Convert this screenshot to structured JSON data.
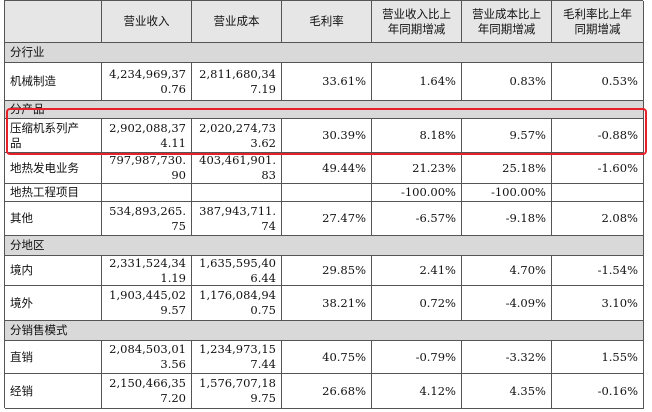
{
  "table": {
    "header": [
      [],
      [
        "营业收入"
      ],
      [
        "营业成本"
      ],
      [
        "毛利率"
      ],
      [
        "营业收入比上",
        "年同期增减"
      ],
      [
        "营业成本比上",
        "年同期增减"
      ],
      [
        "毛利率比上年",
        "同期增减"
      ]
    ],
    "rows": [
      {
        "section": "分行业"
      },
      {
        "cells": [
          [
            "机械制造"
          ],
          [
            "4,234,969,37",
            "0.76"
          ],
          [
            "2,811,680,34",
            "7.19"
          ],
          [
            "33.61%"
          ],
          [
            "1.64%"
          ],
          [
            "0.83%"
          ],
          [
            "0.53%"
          ]
        ]
      },
      {
        "section": "分产品"
      },
      {
        "cells": [
          [
            "压缩机系列产",
            "品"
          ],
          [
            "2,902,088,37",
            "4.11"
          ],
          [
            "2,020,274,73",
            "3.62"
          ],
          [
            "30.39%"
          ],
          [
            "8.18%"
          ],
          [
            "9.57%"
          ],
          [
            "-0.88%"
          ]
        ]
      },
      {
        "cells": [
          [
            "地热发电业务"
          ],
          [
            "797,987,730.",
            "90"
          ],
          [
            "403,461,901.",
            "83"
          ],
          [
            "49.44%"
          ],
          [
            "21.23%"
          ],
          [
            "25.18%"
          ],
          [
            "-1.60%"
          ]
        ]
      },
      {
        "cells": [
          [
            "地热工程项目"
          ],
          [],
          [],
          [],
          [
            "-100.00%"
          ],
          [
            "-100.00%"
          ],
          []
        ]
      },
      {
        "cells": [
          [
            "其他"
          ],
          [
            "534,893,265.",
            "75"
          ],
          [
            "387,943,711.",
            "74"
          ],
          [
            "27.47%"
          ],
          [
            "-6.57%"
          ],
          [
            "-9.18%"
          ],
          [
            "2.08%"
          ]
        ]
      },
      {
        "section": "分地区"
      },
      {
        "cells": [
          [
            "境内"
          ],
          [
            "2,331,524,34",
            "1.19"
          ],
          [
            "1,635,595,40",
            "6.44"
          ],
          [
            "29.85%"
          ],
          [
            "2.41%"
          ],
          [
            "4.70%"
          ],
          [
            "-1.54%"
          ]
        ]
      },
      {
        "cells": [
          [
            "境外"
          ],
          [
            "1,903,445,02",
            "9.57"
          ],
          [
            "1,176,084,94",
            "0.75"
          ],
          [
            "38.21%"
          ],
          [
            "0.72%"
          ],
          [
            "-4.09%"
          ],
          [
            "3.10%"
          ]
        ]
      },
      {
        "section": "分销售模式"
      },
      {
        "cells": [
          [
            "直销"
          ],
          [
            "2,084,503,01",
            "3.56"
          ],
          [
            "1,234,973,15",
            "7.44"
          ],
          [
            "40.75%"
          ],
          [
            "-0.79%"
          ],
          [
            "-3.32%"
          ],
          [
            "1.55%"
          ]
        ]
      },
      {
        "cells": [
          [
            "经销"
          ],
          [
            "2,150,466,35",
            "7.20"
          ],
          [
            "1,576,707,18",
            "9.75"
          ],
          [
            "26.68%"
          ],
          [
            "4.12%"
          ],
          [
            "4.35%"
          ],
          [
            "-0.16%"
          ]
        ]
      }
    ]
  }
}
